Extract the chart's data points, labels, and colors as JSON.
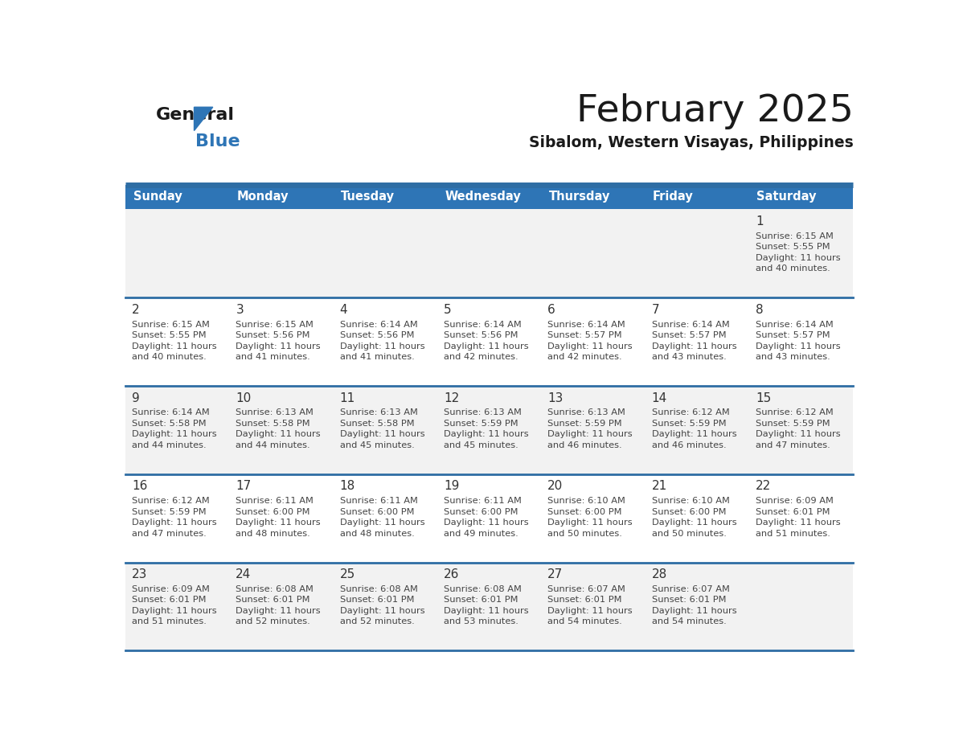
{
  "title": "February 2025",
  "subtitle": "Sibalom, Western Visayas, Philippines",
  "header_bg_color": "#2E75B6",
  "header_text_color": "#FFFFFF",
  "day_names": [
    "Sunday",
    "Monday",
    "Tuesday",
    "Wednesday",
    "Thursday",
    "Friday",
    "Saturday"
  ],
  "bg_color": "#FFFFFF",
  "cell_bg_even": "#F2F2F2",
  "cell_bg_odd": "#FFFFFF",
  "separator_color": "#2E6DA4",
  "grid_line_color": "#2E6DA4",
  "day_num_color": "#333333",
  "info_text_color": "#444444",
  "logo_general_color": "#1A1A1A",
  "logo_blue_color": "#2E75B6",
  "calendar_data": [
    [
      {
        "day": null
      },
      {
        "day": null
      },
      {
        "day": null
      },
      {
        "day": null
      },
      {
        "day": null
      },
      {
        "day": null
      },
      {
        "day": 1,
        "sunrise": "6:15 AM",
        "sunset": "5:55 PM",
        "daylight_h": "11 hours",
        "daylight_m": "and 40 minutes."
      }
    ],
    [
      {
        "day": 2,
        "sunrise": "6:15 AM",
        "sunset": "5:55 PM",
        "daylight_h": "11 hours",
        "daylight_m": "and 40 minutes."
      },
      {
        "day": 3,
        "sunrise": "6:15 AM",
        "sunset": "5:56 PM",
        "daylight_h": "11 hours",
        "daylight_m": "and 41 minutes."
      },
      {
        "day": 4,
        "sunrise": "6:14 AM",
        "sunset": "5:56 PM",
        "daylight_h": "11 hours",
        "daylight_m": "and 41 minutes."
      },
      {
        "day": 5,
        "sunrise": "6:14 AM",
        "sunset": "5:56 PM",
        "daylight_h": "11 hours",
        "daylight_m": "and 42 minutes."
      },
      {
        "day": 6,
        "sunrise": "6:14 AM",
        "sunset": "5:57 PM",
        "daylight_h": "11 hours",
        "daylight_m": "and 42 minutes."
      },
      {
        "day": 7,
        "sunrise": "6:14 AM",
        "sunset": "5:57 PM",
        "daylight_h": "11 hours",
        "daylight_m": "and 43 minutes."
      },
      {
        "day": 8,
        "sunrise": "6:14 AM",
        "sunset": "5:57 PM",
        "daylight_h": "11 hours",
        "daylight_m": "and 43 minutes."
      }
    ],
    [
      {
        "day": 9,
        "sunrise": "6:14 AM",
        "sunset": "5:58 PM",
        "daylight_h": "11 hours",
        "daylight_m": "and 44 minutes."
      },
      {
        "day": 10,
        "sunrise": "6:13 AM",
        "sunset": "5:58 PM",
        "daylight_h": "11 hours",
        "daylight_m": "and 44 minutes."
      },
      {
        "day": 11,
        "sunrise": "6:13 AM",
        "sunset": "5:58 PM",
        "daylight_h": "11 hours",
        "daylight_m": "and 45 minutes."
      },
      {
        "day": 12,
        "sunrise": "6:13 AM",
        "sunset": "5:59 PM",
        "daylight_h": "11 hours",
        "daylight_m": "and 45 minutes."
      },
      {
        "day": 13,
        "sunrise": "6:13 AM",
        "sunset": "5:59 PM",
        "daylight_h": "11 hours",
        "daylight_m": "and 46 minutes."
      },
      {
        "day": 14,
        "sunrise": "6:12 AM",
        "sunset": "5:59 PM",
        "daylight_h": "11 hours",
        "daylight_m": "and 46 minutes."
      },
      {
        "day": 15,
        "sunrise": "6:12 AM",
        "sunset": "5:59 PM",
        "daylight_h": "11 hours",
        "daylight_m": "and 47 minutes."
      }
    ],
    [
      {
        "day": 16,
        "sunrise": "6:12 AM",
        "sunset": "5:59 PM",
        "daylight_h": "11 hours",
        "daylight_m": "and 47 minutes."
      },
      {
        "day": 17,
        "sunrise": "6:11 AM",
        "sunset": "6:00 PM",
        "daylight_h": "11 hours",
        "daylight_m": "and 48 minutes."
      },
      {
        "day": 18,
        "sunrise": "6:11 AM",
        "sunset": "6:00 PM",
        "daylight_h": "11 hours",
        "daylight_m": "and 48 minutes."
      },
      {
        "day": 19,
        "sunrise": "6:11 AM",
        "sunset": "6:00 PM",
        "daylight_h": "11 hours",
        "daylight_m": "and 49 minutes."
      },
      {
        "day": 20,
        "sunrise": "6:10 AM",
        "sunset": "6:00 PM",
        "daylight_h": "11 hours",
        "daylight_m": "and 50 minutes."
      },
      {
        "day": 21,
        "sunrise": "6:10 AM",
        "sunset": "6:00 PM",
        "daylight_h": "11 hours",
        "daylight_m": "and 50 minutes."
      },
      {
        "day": 22,
        "sunrise": "6:09 AM",
        "sunset": "6:01 PM",
        "daylight_h": "11 hours",
        "daylight_m": "and 51 minutes."
      }
    ],
    [
      {
        "day": 23,
        "sunrise": "6:09 AM",
        "sunset": "6:01 PM",
        "daylight_h": "11 hours",
        "daylight_m": "and 51 minutes."
      },
      {
        "day": 24,
        "sunrise": "6:08 AM",
        "sunset": "6:01 PM",
        "daylight_h": "11 hours",
        "daylight_m": "and 52 minutes."
      },
      {
        "day": 25,
        "sunrise": "6:08 AM",
        "sunset": "6:01 PM",
        "daylight_h": "11 hours",
        "daylight_m": "and 52 minutes."
      },
      {
        "day": 26,
        "sunrise": "6:08 AM",
        "sunset": "6:01 PM",
        "daylight_h": "11 hours",
        "daylight_m": "and 53 minutes."
      },
      {
        "day": 27,
        "sunrise": "6:07 AM",
        "sunset": "6:01 PM",
        "daylight_h": "11 hours",
        "daylight_m": "and 54 minutes."
      },
      {
        "day": 28,
        "sunrise": "6:07 AM",
        "sunset": "6:01 PM",
        "daylight_h": "11 hours",
        "daylight_m": "and 54 minutes."
      },
      {
        "day": null
      }
    ]
  ]
}
